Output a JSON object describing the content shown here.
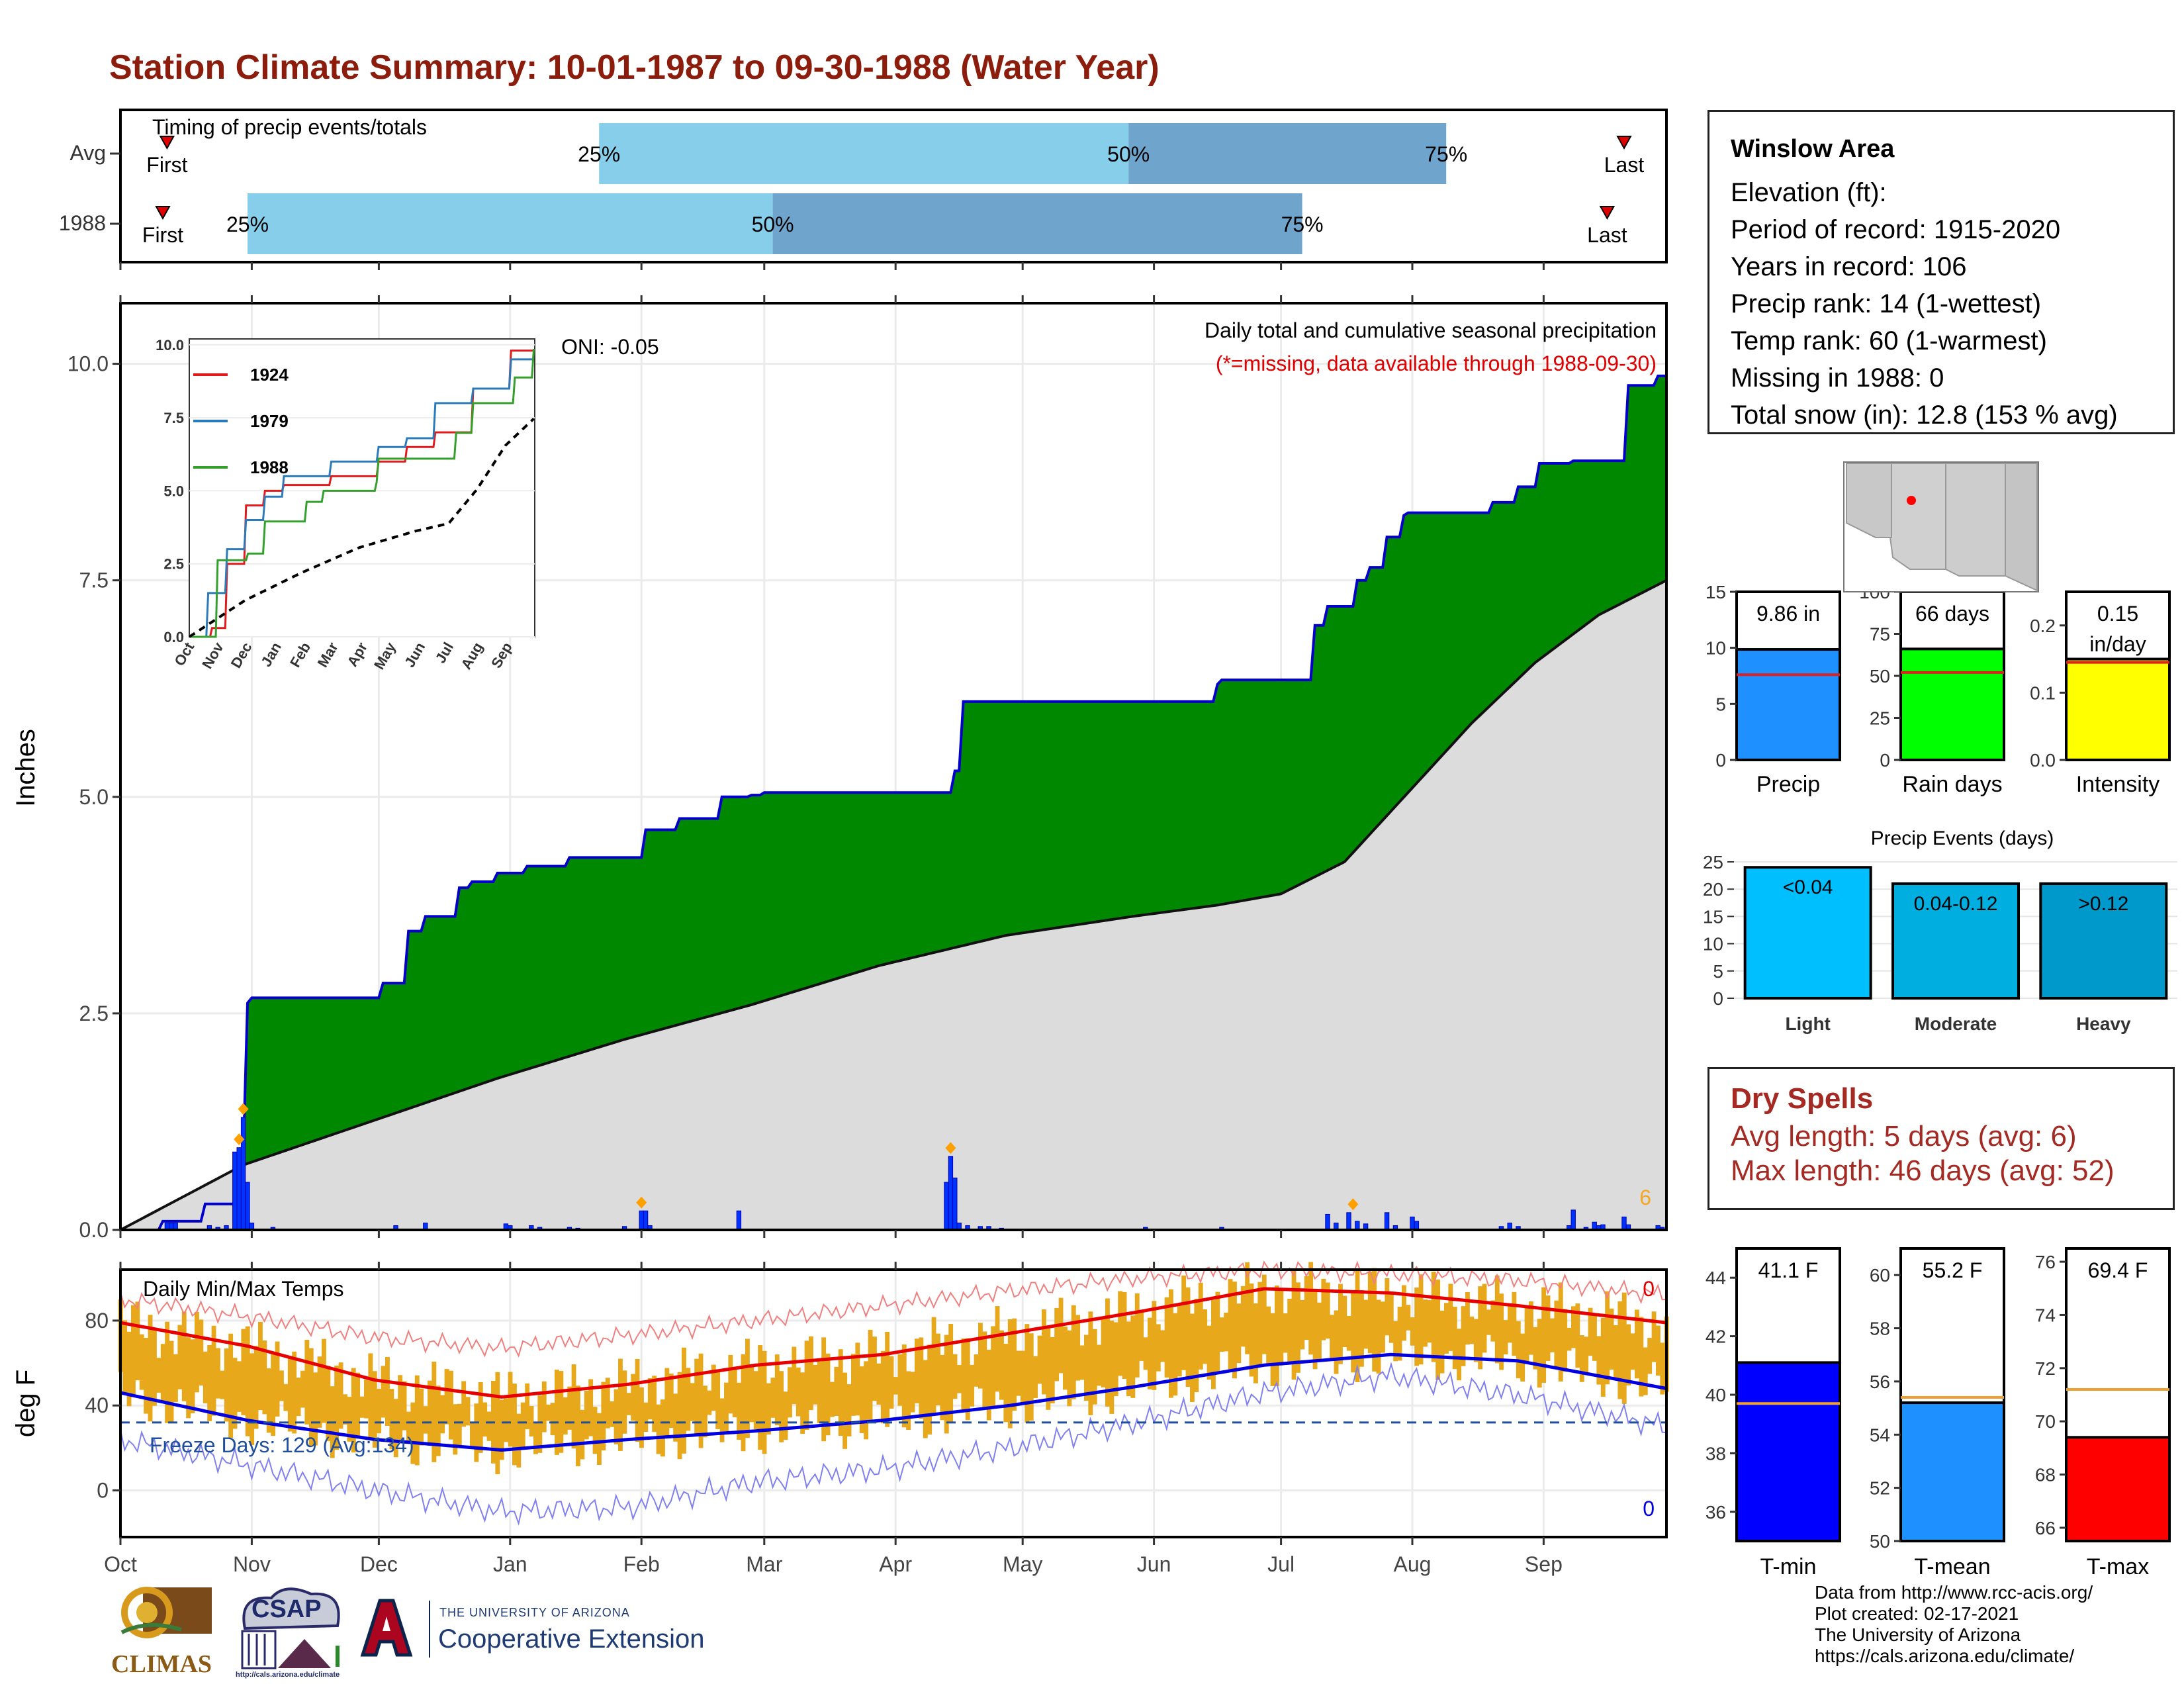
{
  "title": "Station Climate Summary: 10-01-1987 to 09-30-1988 (Water Year)",
  "timing": {
    "title": "Timing of precip events/totals",
    "rows": [
      {
        "label": "Avg",
        "first_label": "First",
        "last_label": "Last",
        "p25": "25%",
        "p50": "50%",
        "p75": "75%",
        "first_doy": 12,
        "p25_doy": 114,
        "p50_doy": 239,
        "p75_doy": 314,
        "last_doy": 356
      },
      {
        "label": "1988",
        "first_label": "First",
        "last_label": "Last",
        "p25": "25%",
        "p50": "50%",
        "p75": "75%",
        "first_doy": 11,
        "p25_doy": 31,
        "p50_doy": 155,
        "p75_doy": 280,
        "last_doy": 352
      }
    ],
    "colors": {
      "light": "#87ceeb",
      "dark": "#6fa4cd",
      "marker": "#e00000"
    }
  },
  "precip_panel": {
    "ylabel": "Inches",
    "subtitle": "Daily total and cumulative seasonal precipitation",
    "missing_note": "(*=missing, data available through 1988-09-30)",
    "oni": "ONI: -0.05",
    "corner_count": "6",
    "month_ticks": [
      "Oct",
      "Nov",
      "Dec",
      "Jan",
      "Feb",
      "Mar",
      "Apr",
      "May",
      "Jun",
      "Jul",
      "Aug",
      "Sep"
    ],
    "yticks": [
      "0.0",
      "2.5",
      "5.0",
      "7.5",
      "10.0"
    ]
  },
  "temp_panel": {
    "ylabel": "deg F",
    "title": "Daily Min/Max Temps",
    "freeze": "Freeze Days: 129 (Avg:134)",
    "record_high_count": "0",
    "record_low_count": "0",
    "yticks": [
      "0",
      "40",
      "80"
    ]
  },
  "inset": {
    "legend": [
      "1924",
      "1979",
      "1988"
    ],
    "yticks": [
      "0.0",
      "2.5",
      "5.0",
      "7.5",
      "10.0"
    ],
    "xticks": [
      "Oct",
      "Nov",
      "Dec",
      "Jan",
      "Feb",
      "Mar",
      "Apr",
      "May",
      "Jun",
      "Jul",
      "Aug",
      "Sep"
    ]
  },
  "station": {
    "name": "Winslow Area",
    "lines": [
      "Elevation (ft):",
      "Period of record: 1915-2020",
      "Years in record: 106",
      "Precip rank: 14 (1-wettest)",
      "Temp rank: 60 (1-warmest)",
      "Missing in 1988: 0",
      "Total snow (in): 12.8 (153 % avg)"
    ]
  },
  "bars_top": [
    {
      "label": "Precip",
      "value_text": "9.86 in",
      "yticks": [
        "0",
        "5",
        "10",
        "15"
      ]
    },
    {
      "label": "Rain days",
      "value_text": "66 days",
      "yticks": [
        "0",
        "25",
        "50",
        "75",
        "100"
      ]
    },
    {
      "label": "Intensity",
      "value_text": "0.15 in/day",
      "value_line1": "0.15",
      "value_line2": "in/day",
      "yticks": [
        "0.0",
        "0.1",
        "0.2"
      ]
    }
  ],
  "precip_events": {
    "title": "Precip Events (days)",
    "yticks": [
      "0",
      "5",
      "10",
      "15",
      "20",
      "25"
    ],
    "categories": [
      "Light",
      "Moderate",
      "Heavy"
    ],
    "bar_labels": [
      "<0.04",
      "0.04-0.12",
      ">0.12"
    ]
  },
  "dry_spells": {
    "title": "Dry Spells",
    "avg": "Avg length: 5 days (avg: 6)",
    "max": "Max length: 46 days (avg: 52)"
  },
  "bars_bottom": [
    {
      "label": "T-min",
      "value_text": "41.1 F",
      "yticks": [
        "36",
        "38",
        "40",
        "42",
        "44"
      ]
    },
    {
      "label": "T-mean",
      "value_text": "55.2 F",
      "yticks": [
        "50",
        "52",
        "54",
        "56",
        "58",
        "60"
      ]
    },
    {
      "label": "T-max",
      "value_text": "69.4 F",
      "yticks": [
        "66",
        "68",
        "70",
        "72",
        "74",
        "76"
      ]
    }
  ],
  "credits": [
    "Data from http://www.rcc-acis.org/",
    "Plot created: 02-17-2021",
    "The University of Arizona",
    "https://cals.arizona.edu/climate/"
  ],
  "logos": {
    "climas": "CLIMAS",
    "csap": "CSAP",
    "csap_url": "http://cals.arizona.edu/climate",
    "ua_small": "THE UNIVERSITY OF ARIZONA",
    "ua_big": "Cooperative Extension"
  },
  "chart_data": [
    {
      "type": "area",
      "title": "Daily total and cumulative seasonal precipitation",
      "ylabel": "Inches",
      "ylim": [
        0,
        10.7
      ],
      "x_unit": "day of water year (1 = Oct 1)",
      "series": [
        {
          "name": "1988 cumulative",
          "color": "#0000cc",
          "x": [
            1,
            11,
            21,
            30,
            31,
            32,
            62,
            63,
            69,
            73,
            81,
            84,
            90,
            97,
            107,
            124,
            125,
            133,
            143,
            150,
            153,
            182,
            198,
            200,
            260,
            261,
            262,
            283,
            286,
            293,
            296,
            300,
            304,
            305,
            325,
            331,
            336,
            344,
            357,
            364,
            366
          ],
          "y": [
            0.0,
            0.1,
            0.3,
            0.88,
            2.62,
            2.68,
            2.68,
            2.85,
            3.45,
            3.62,
            3.95,
            4.02,
            4.12,
            4.2,
            4.3,
            4.3,
            4.62,
            4.75,
            5.0,
            5.02,
            5.05,
            5.05,
            5.3,
            6.1,
            6.3,
            6.35,
            6.35,
            6.98,
            7.2,
            7.5,
            7.65,
            8.0,
            8.25,
            8.28,
            8.4,
            8.58,
            8.85,
            8.88,
            9.75,
            9.86,
            9.86
          ]
        },
        {
          "name": "Average cumulative",
          "color": "#d9d9d9",
          "x": [
            1,
            30,
            60,
            90,
            120,
            150,
            180,
            210,
            240,
            260,
            275,
            290,
            305,
            320,
            335,
            350,
            366
          ],
          "y": [
            0.0,
            0.75,
            1.25,
            1.75,
            2.2,
            2.6,
            3.05,
            3.4,
            3.62,
            3.75,
            3.88,
            4.25,
            5.05,
            5.85,
            6.55,
            7.1,
            7.5
          ]
        }
      ],
      "daily_precip": {
        "x": [
          12,
          13,
          14,
          22,
          24,
          26,
          28,
          29,
          30,
          31,
          32,
          37,
          66,
          73,
          92,
          93,
          98,
          100,
          107,
          109,
          120,
          124,
          125,
          126,
          147,
          196,
          197,
          198,
          199,
          201,
          204,
          206,
          209,
          243,
          261,
          286,
          288,
          291,
          293,
          295,
          300,
          302,
          306,
          307,
          327,
          329,
          331,
          343,
          344,
          347,
          349,
          350,
          351,
          356,
          357,
          364,
          365
        ],
        "y": [
          0.08,
          0.08,
          0.08,
          0.05,
          0.03,
          0.05,
          0.9,
          0.95,
          1.3,
          0.55,
          0.08,
          0.03,
          0.05,
          0.08,
          0.07,
          0.05,
          0.05,
          0.03,
          0.03,
          0.02,
          0.04,
          0.22,
          0.22,
          0.05,
          0.22,
          0.55,
          0.85,
          0.6,
          0.08,
          0.05,
          0.04,
          0.04,
          0.02,
          0.03,
          0.03,
          0.18,
          0.08,
          0.2,
          0.1,
          0.07,
          0.2,
          0.05,
          0.15,
          0.1,
          0.04,
          0.08,
          0.04,
          0.05,
          0.23,
          0.03,
          0.09,
          0.05,
          0.06,
          0.15,
          0.06,
          0.05,
          0.03
        ],
        "snow_marker_days": [
          29,
          30,
          124,
          197,
          292
        ]
      }
    },
    {
      "type": "line",
      "title": "Daily Min/Max Temps",
      "ylabel": "deg F",
      "ylim": [
        -22,
        104
      ],
      "x_unit": "day of water year",
      "series": [
        {
          "name": "Normal max",
          "color": "#e60000",
          "x": [
            1,
            31,
            61,
            91,
            121,
            151,
            181,
            211,
            241,
            271,
            301,
            331,
            366
          ],
          "y": [
            79,
            68,
            52,
            44,
            50,
            59,
            64,
            74,
            84,
            95,
            93,
            87,
            79
          ]
        },
        {
          "name": "Normal min",
          "color": "#0000e0",
          "x": [
            1,
            31,
            61,
            91,
            121,
            151,
            181,
            211,
            241,
            271,
            301,
            331,
            366
          ],
          "y": [
            46,
            33,
            24,
            19,
            24,
            28,
            33,
            40,
            49,
            59,
            64,
            61,
            48
          ]
        },
        {
          "name": "Record max",
          "color": "#f08080",
          "x": [
            1,
            31,
            61,
            91,
            121,
            151,
            181,
            211,
            241,
            271,
            301,
            331,
            366
          ],
          "y": [
            90,
            82,
            72,
            67,
            73,
            80,
            87,
            94,
            100,
            104,
            102,
            99,
            92
          ]
        },
        {
          "name": "Record min",
          "color": "#8080f0",
          "x": [
            1,
            31,
            61,
            91,
            121,
            151,
            181,
            211,
            241,
            271,
            301,
            331,
            366
          ],
          "y": [
            24,
            12,
            0,
            -10,
            -8,
            4,
            10,
            20,
            32,
            46,
            54,
            45,
            30
          ]
        }
      ],
      "freeze_line": 32
    },
    {
      "type": "line",
      "title": "",
      "ylim": [
        0,
        10.2
      ],
      "series": [
        {
          "name": "1924",
          "color": "#e31a1c",
          "x": [
            1,
            25,
            40,
            60,
            80,
            100,
            150,
            200,
            230,
            260,
            300,
            340,
            366
          ],
          "y": [
            0,
            0.3,
            2.5,
            4.5,
            5.0,
            5.2,
            5.5,
            6.0,
            6.5,
            7.0,
            8.5,
            9.8,
            10.2
          ]
        },
        {
          "name": "1979",
          "color": "#2b7bba",
          "x": [
            1,
            20,
            40,
            60,
            80,
            100,
            150,
            200,
            230,
            260,
            300,
            340,
            366
          ],
          "y": [
            0,
            1.5,
            3.0,
            4.0,
            4.8,
            5.5,
            6.0,
            6.5,
            6.8,
            8.0,
            8.5,
            9.5,
            9.7
          ]
        },
        {
          "name": "1988",
          "color": "#33a02c",
          "x": [
            1,
            31,
            63,
            81,
            125,
            143,
            198,
            200,
            283,
            300,
            344,
            364
          ],
          "y": [
            0,
            2.62,
            2.85,
            3.95,
            4.62,
            5.0,
            5.3,
            6.1,
            6.98,
            8.0,
            8.88,
            9.86
          ]
        },
        {
          "name": "Average",
          "color": "#000000",
          "x": [
            1,
            60,
            120,
            180,
            240,
            275,
            305,
            335,
            366
          ],
          "y": [
            0,
            1.25,
            2.2,
            3.05,
            3.62,
            3.88,
            5.05,
            6.55,
            7.5
          ]
        }
      ]
    },
    {
      "type": "bar",
      "title": "",
      "categories": [
        "Precip",
        "Rain days",
        "Intensity"
      ],
      "values": [
        9.86,
        66,
        0.15
      ],
      "averages": [
        7.6,
        52,
        0.145
      ],
      "ylims": [
        [
          0,
          15
        ],
        [
          0,
          100
        ],
        [
          0,
          0.25
        ]
      ],
      "colors": [
        "#1e90ff",
        "#00ff00",
        "#ffff00"
      ]
    },
    {
      "type": "bar",
      "title": "Precip Events (days)",
      "categories": [
        "Light",
        "Moderate",
        "Heavy"
      ],
      "values": [
        24,
        21,
        21
      ],
      "ylim": [
        0,
        25
      ],
      "colors": [
        "#00bfff",
        "#00aee0",
        "#0099cc"
      ]
    },
    {
      "type": "bar",
      "title": "",
      "categories": [
        "T-min",
        "T-mean",
        "T-max"
      ],
      "values": [
        41.1,
        55.2,
        69.4
      ],
      "averages": [
        39.7,
        55.4,
        71.2
      ],
      "ylims": [
        [
          35,
          45
        ],
        [
          50,
          61
        ],
        [
          65.5,
          76.5
        ]
      ],
      "colors": [
        "#0000ff",
        "#1e90ff",
        "#ff0000"
      ]
    }
  ]
}
